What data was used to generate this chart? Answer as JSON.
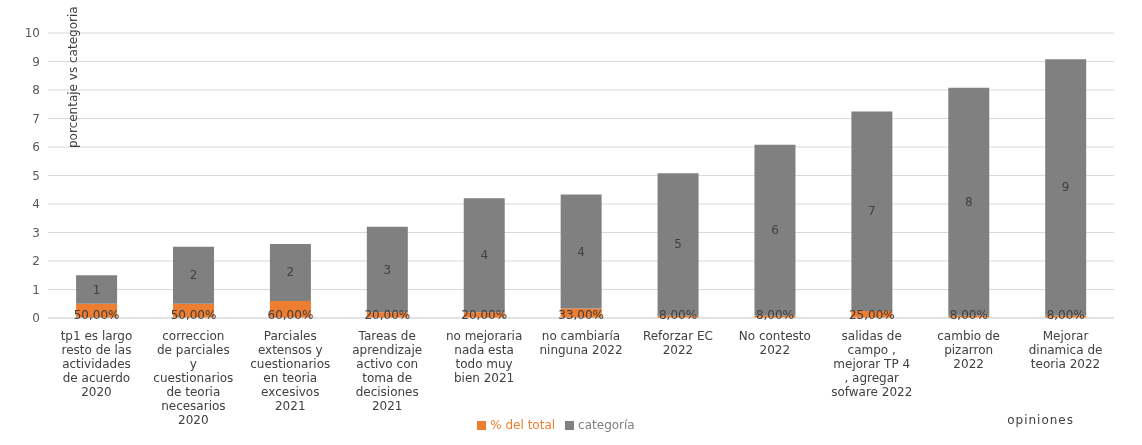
{
  "chart_data": {
    "type": "bar",
    "stacked": true,
    "ylabel": "porcentaje vs categoria",
    "xlabel": "opiniones",
    "categories": [
      "tp1 es largo resto de las actividades de acuerdo 2020",
      "correccion de parciales y cuestionarios de teoria necesarios 2020",
      "Parciales extensos y cuestionarios en teoria excesivos 2021",
      "Tareas de aprendizaje activo con toma de decisiones 2021",
      "no mejoraria nada esta todo muy bien 2021",
      "no cambiaría ninguna 2022",
      "Reforzar EC 2022",
      "No contesto 2022",
      "salidas de campo , mejorar TP 4 , agregar sofware 2022",
      "cambio de pizarron 2022",
      "Mejorar dinamica de teoria 2022"
    ],
    "series": [
      {
        "name": "% del total",
        "color": "#ed7d31",
        "values": [
          0.5,
          0.5,
          0.6,
          0.2,
          0.2,
          0.33,
          0.08,
          0.08,
          0.25,
          0.08,
          0.08
        ],
        "value_labels": [
          "50,00%",
          "50,00%",
          "60,00%",
          "20,00%",
          "20,00%",
          "33,00%",
          "8,00%",
          "8,00%",
          "25,00%",
          "8,00%",
          "8,00%"
        ]
      },
      {
        "name": "categoría",
        "color": "#808080",
        "values": [
          1,
          2,
          2,
          3,
          4,
          4,
          5,
          6,
          7,
          8,
          9
        ],
        "value_labels": [
          "1",
          "2",
          "2",
          "3",
          "4",
          "4",
          "5",
          "6",
          "7",
          "8",
          "9"
        ]
      }
    ],
    "ylim": [
      0,
      10
    ],
    "yticks": [
      0,
      1,
      2,
      3,
      4,
      5,
      6,
      7,
      8,
      9,
      10
    ],
    "grid": "y",
    "legend": "bottom"
  }
}
